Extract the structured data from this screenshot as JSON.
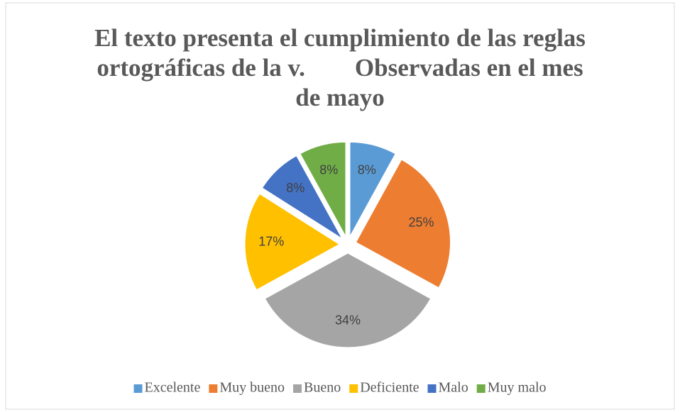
{
  "chart_data": {
    "type": "pie",
    "title": [
      "El texto presenta el cumplimiento de las reglas",
      "ortográficas de la v.        Observadas en el mes",
      "de mayo"
    ],
    "categories": [
      "Excelente",
      "Muy bueno",
      "Bueno",
      "Deficiente",
      "Malo",
      "Muy malo"
    ],
    "values": [
      8,
      25,
      34,
      17,
      8,
      8
    ],
    "value_labels": [
      "8%",
      "25%",
      "34%",
      "17%",
      "8%",
      "8%"
    ],
    "colors": [
      "#5b9bd5",
      "#ed7d31",
      "#a5a5a5",
      "#ffc000",
      "#4472c4",
      "#70ad47"
    ],
    "legend": "bottom"
  }
}
